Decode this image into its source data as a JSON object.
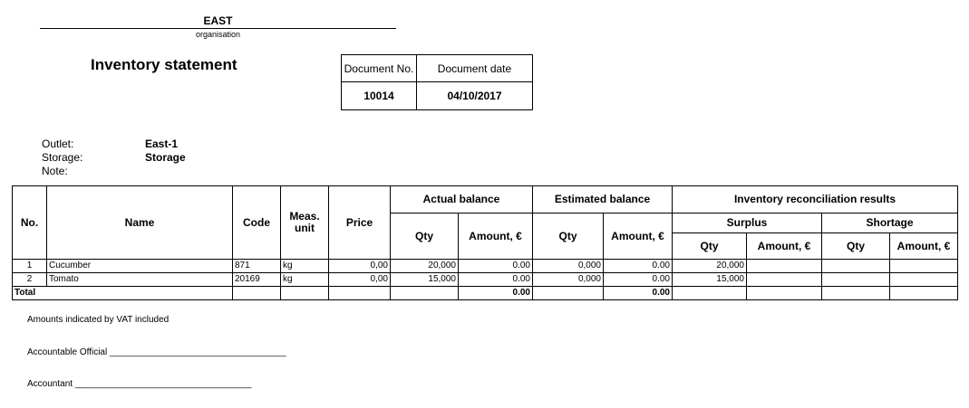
{
  "header": {
    "organisation": "EAST",
    "organisation_caption": "organisation",
    "title": "Inventory statement"
  },
  "document": {
    "no_label": "Document No.",
    "date_label": "Document date",
    "no": "10014",
    "date": "04/10/2017"
  },
  "meta": {
    "outlet_label": "Outlet:",
    "outlet": "East-1",
    "storage_label": "Storage:",
    "storage": "Storage",
    "note_label": "Note:"
  },
  "table": {
    "headers": {
      "no": "No.",
      "name": "Name",
      "code": "Code",
      "unit": "Meas. unit",
      "price": "Price",
      "actual": "Actual balance",
      "estimated": "Estimated balance",
      "reconciliation": "Inventory reconciliation results",
      "surplus": "Surplus",
      "shortage": "Shortage",
      "qty": "Qty",
      "amount": "Amount, €"
    },
    "rows": [
      {
        "no": "1",
        "name": "Cucumber",
        "code": "871",
        "unit": "kg",
        "price": "0,00",
        "act_qty": "20,000",
        "act_amt": "0.00",
        "est_qty": "0,000",
        "est_amt": "0.00",
        "sur_qty": "20,000",
        "sur_amt": "",
        "sho_qty": "",
        "sho_amt": ""
      },
      {
        "no": "2",
        "name": "Tomato",
        "code": "20169",
        "unit": "kg",
        "price": "0,00",
        "act_qty": "15,000",
        "act_amt": "0.00",
        "est_qty": "0,000",
        "est_amt": "0.00",
        "sur_qty": "15,000",
        "sur_amt": "",
        "sho_qty": "",
        "sho_amt": ""
      }
    ],
    "total": {
      "label": "Total",
      "act_amt": "0.00",
      "est_amt": "0.00"
    }
  },
  "footer": {
    "vat_note": "Amounts indicated by VAT included",
    "official": "Accountable Official ___________________________________",
    "accountant": "Accountant ___________________________________"
  }
}
